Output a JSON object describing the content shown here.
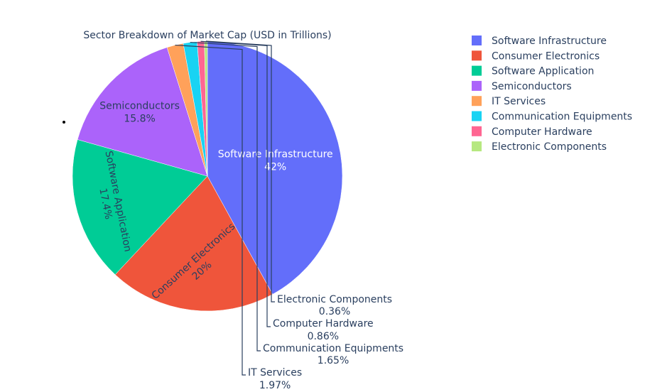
{
  "chart_data": {
    "type": "pie",
    "title": "Sector Breakdown of Market Cap (USD in Trillions)",
    "slices": [
      {
        "label": "Software Infrastructure",
        "percent": 42.0,
        "percent_text": "42%",
        "color": "#636efa",
        "text_color": "#ffffff"
      },
      {
        "label": "Consumer Electronics",
        "percent": 20.0,
        "percent_text": "20%",
        "color": "#EF553B",
        "text_color": "#2a3f5f"
      },
      {
        "label": "Software Application",
        "percent": 17.4,
        "percent_text": "17.4%",
        "color": "#00cc96",
        "text_color": "#2a3f5f"
      },
      {
        "label": "Semiconductors",
        "percent": 15.8,
        "percent_text": "15.8%",
        "color": "#ab63fa",
        "text_color": "#2a3f5f"
      },
      {
        "label": "IT Services",
        "percent": 1.97,
        "percent_text": "1.97%",
        "color": "#FFA15A",
        "text_color": "#2a3f5f"
      },
      {
        "label": "Communication Equipments",
        "percent": 1.65,
        "percent_text": "1.65%",
        "color": "#19d3f3",
        "text_color": "#2a3f5f"
      },
      {
        "label": "Computer Hardware",
        "percent": 0.86,
        "percent_text": "0.86%",
        "color": "#FF6692",
        "text_color": "#2a3f5f"
      },
      {
        "label": "Electronic Components",
        "percent": 0.36,
        "percent_text": "0.36%",
        "color": "#B6E880",
        "text_color": "#2a3f5f"
      }
    ],
    "legend_position": "top-right"
  }
}
